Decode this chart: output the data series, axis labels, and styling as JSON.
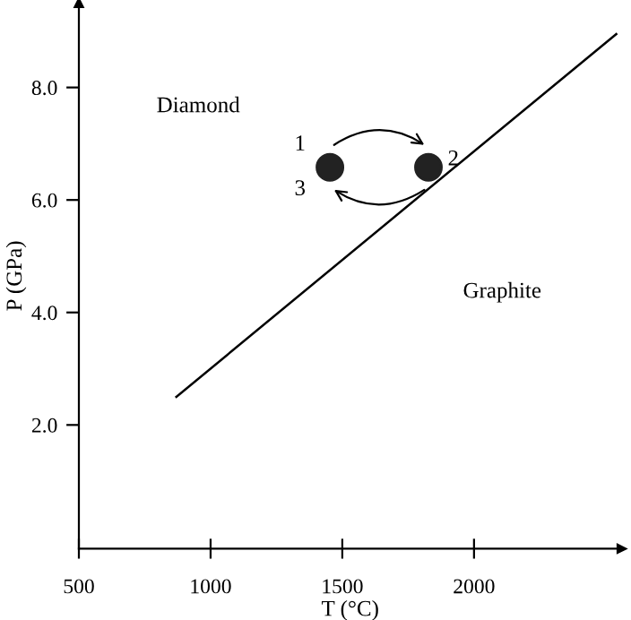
{
  "chart_data": {
    "type": "line",
    "xlabel": "T (°C)",
    "ylabel": "P (GPa)",
    "xlim": [
      500,
      2560
    ],
    "ylim": [
      -0.2,
      9.5
    ],
    "xticks": [
      500,
      1000,
      1500,
      2000
    ],
    "yticks": [
      {
        "value": 2,
        "label": "2.0"
      },
      {
        "value": 4,
        "label": "4.0"
      },
      {
        "value": 6,
        "label": "6.0"
      },
      {
        "value": 8,
        "label": "8.0"
      }
    ],
    "grid": false,
    "legend": false,
    "series": [
      {
        "color": "#000000",
        "x": [
          870,
          2540
        ],
        "values": [
          2.5,
          8.95
        ],
        "line_style": "solid"
      },
      {
        "type": "scatter",
        "color": "#222222",
        "x": [
          1453,
          1827
        ],
        "values": [
          6.58,
          6.58
        ],
        "marker": "circle"
      }
    ],
    "annotations": [
      "Diamond",
      "Graphite",
      "1",
      "2",
      "3"
    ]
  }
}
